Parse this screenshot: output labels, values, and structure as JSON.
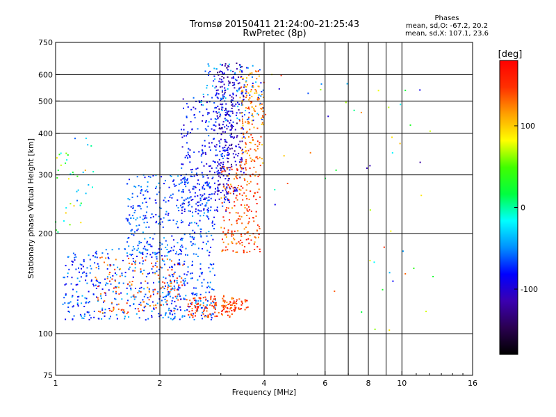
{
  "chart_data": {
    "type": "scatter",
    "title": "Tromsø 20150411 21:24:00–21:25:43",
    "subtitle": "RwPretec (8p)",
    "xlabel": "Frequency [MHz]",
    "ylabel": "Stationary phase Virtual Height [km]",
    "x_scale": "log",
    "y_scale": "log",
    "xlim": [
      1,
      16
    ],
    "ylim": [
      75,
      750
    ],
    "x_ticks": [
      1,
      2,
      4,
      6,
      8,
      10,
      16
    ],
    "x_ticklabels": [
      "1",
      "2",
      "4",
      "6",
      "8",
      "10",
      "16"
    ],
    "x_gridlines": [
      2,
      4,
      6,
      7,
      8,
      9,
      10
    ],
    "y_ticks": [
      75,
      100,
      200,
      300,
      400,
      500,
      600,
      750
    ],
    "y_ticklabels": [
      "75",
      "100",
      "200",
      "300",
      "400",
      "500",
      "600",
      "750"
    ],
    "grid": true,
    "legend": {
      "title": "Phases",
      "lines": [
        "mean, sd,O: -67.2, 20.2",
        "mean, sd,X: 107.1, 23.6"
      ],
      "placement": "top-right"
    },
    "colorbar": {
      "label": "[deg]",
      "range": [
        -180,
        180
      ],
      "ticks": [
        100,
        0,
        -100
      ],
      "colormap": [
        "#000000",
        "#2a0050",
        "#3b00b0",
        "#0000ff",
        "#0090ff",
        "#00ffff",
        "#00ff40",
        "#40ff00",
        "#ffff00",
        "#ffa000",
        "#ff3000",
        "#ff0000"
      ]
    },
    "clusters": [
      {
        "fmin": 1.05,
        "fmax": 2.3,
        "hmin": 110,
        "hmax": 180,
        "pmin": -95,
        "pmax": -35,
        "n": 360
      },
      {
        "fmin": 1.6,
        "fmax": 2.9,
        "hmin": 170,
        "hmax": 300,
        "pmin": -90,
        "pmax": -40,
        "n": 340
      },
      {
        "fmin": 1.3,
        "fmax": 2.4,
        "hmin": 115,
        "hmax": 170,
        "pmin": 110,
        "pmax": 165,
        "n": 140
      },
      {
        "fmin": 2.1,
        "fmax": 2.9,
        "hmin": 110,
        "hmax": 165,
        "pmin": -90,
        "pmax": -40,
        "n": 140
      },
      {
        "fmin": 2.4,
        "fmax": 3.3,
        "hmin": 112,
        "hmax": 130,
        "pmin": 120,
        "pmax": 170,
        "n": 110
      },
      {
        "fmin": 2.3,
        "fmax": 3.2,
        "hmin": 230,
        "hmax": 520,
        "pmin": -110,
        "pmax": -55,
        "n": 280
      },
      {
        "fmin": 2.9,
        "fmax": 3.5,
        "hmin": 260,
        "hmax": 650,
        "pmin": -135,
        "pmax": -80,
        "n": 260
      },
      {
        "fmin": 3.0,
        "fmax": 3.9,
        "hmin": 175,
        "hmax": 320,
        "pmin": 110,
        "pmax": 170,
        "n": 200
      },
      {
        "fmin": 3.4,
        "fmax": 4.0,
        "hmin": 320,
        "hmax": 620,
        "pmin": 95,
        "pmax": 150,
        "n": 150
      },
      {
        "fmin": 2.6,
        "fmax": 4.0,
        "hmin": 430,
        "hmax": 650,
        "pmin": -90,
        "pmax": -30,
        "n": 100
      },
      {
        "fmin": 3.0,
        "fmax": 3.6,
        "hmin": 118,
        "hmax": 128,
        "pmin": 120,
        "pmax": 175,
        "n": 45
      },
      {
        "fmin": 1.0,
        "fmax": 1.3,
        "hmin": 200,
        "hmax": 390,
        "pmin": -60,
        "pmax": 120,
        "n": 40
      },
      {
        "fmin": 4.0,
        "fmax": 12.5,
        "hmin": 85,
        "hmax": 610,
        "pmin": -120,
        "pmax": 160,
        "n": 50
      }
    ]
  }
}
